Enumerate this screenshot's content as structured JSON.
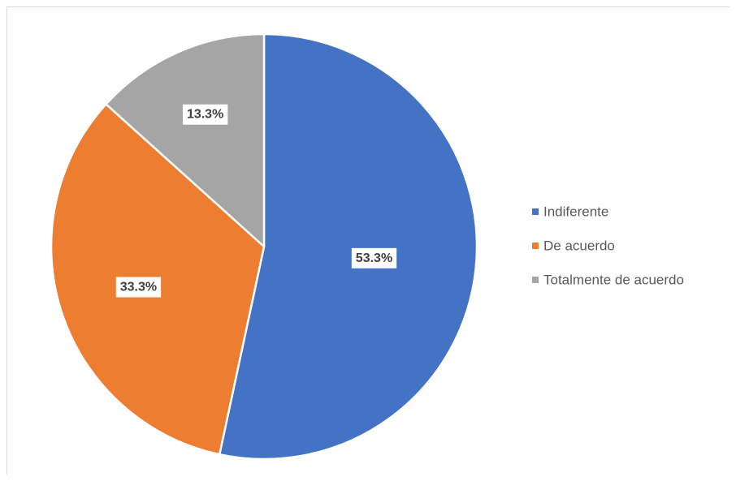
{
  "chart_data": {
    "type": "pie",
    "title": "",
    "categories": [
      "Indiferente",
      "De acuerdo",
      "Totalmente de acuerdo"
    ],
    "values": [
      53.3,
      33.3,
      13.3
    ],
    "data_labels": [
      "53.3%",
      "33.3%",
      "13.3%"
    ],
    "colors": [
      "#4472c4",
      "#ed7d31",
      "#a5a5a5"
    ],
    "start_angle": "12 o'clock",
    "direction": "clockwise",
    "legend_position": "right"
  }
}
